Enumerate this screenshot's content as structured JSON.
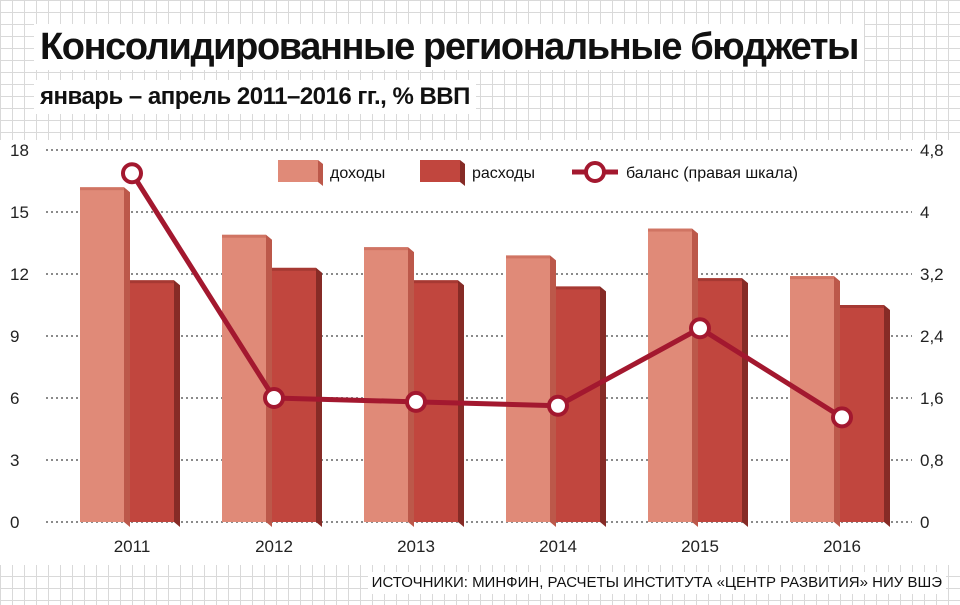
{
  "title": "Консолидированные региональные бюджеты",
  "subtitle": "январь – апрель 2011–2016 гг., % ВВП",
  "source": "ИСТОЧНИКИ: МИНФИН, РАСЧЕТЫ ИНСТИТУТА «ЦЕНТР РАЗВИТИЯ» НИУ ВШЭ",
  "colors": {
    "income_front": "#e08a78",
    "income_side": "#bc584a",
    "expense_front": "#c1463e",
    "expense_side": "#862b26",
    "balance_line": "#a3182f",
    "grid": "#8a8a8a"
  },
  "chart_data": {
    "type": "bar",
    "categories": [
      "2011",
      "2012",
      "2013",
      "2014",
      "2015",
      "2016"
    ],
    "series": [
      {
        "name": "доходы",
        "type": "bar",
        "axis": "left",
        "values": [
          16.2,
          13.9,
          13.3,
          12.9,
          14.2,
          11.9
        ]
      },
      {
        "name": "расходы",
        "type": "bar",
        "axis": "left",
        "values": [
          11.7,
          12.3,
          11.7,
          11.4,
          11.8,
          10.5
        ]
      },
      {
        "name": "баланс (правая шкала)",
        "type": "line",
        "axis": "right",
        "values": [
          4.5,
          1.6,
          1.55,
          1.5,
          2.5,
          1.35
        ]
      }
    ],
    "ylim": [
      0,
      18
    ],
    "yticks": [
      "0",
      "3",
      "6",
      "9",
      "12",
      "15",
      "18"
    ],
    "y2lim": [
      0,
      4.8
    ],
    "y2ticks": [
      "0",
      "0,8",
      "1,6",
      "2,4",
      "3,2",
      "4",
      "4,8"
    ],
    "grid": true,
    "legend_position": "top"
  }
}
